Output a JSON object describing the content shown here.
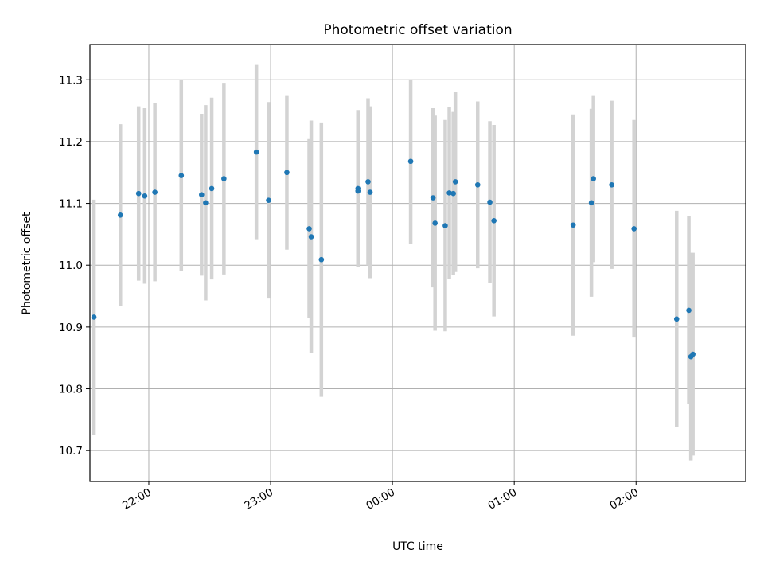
{
  "chart_data": {
    "type": "scatter",
    "title": "Photometric offset variation",
    "xlabel": "UTC time",
    "ylabel": "Photometric offset",
    "x_unit": "UTC time (HH:MM)",
    "x_range": [
      "21:31",
      "02:54"
    ],
    "ylim": [
      10.65,
      11.357
    ],
    "grid": true,
    "x_ticks": [
      "22:00",
      "23:00",
      "00:00",
      "01:00",
      "02:00"
    ],
    "y_ticks": [
      "10.7",
      "10.8",
      "10.9",
      "11.0",
      "11.1",
      "11.2",
      "11.3"
    ],
    "series": [
      {
        "marker_color": "#1f77b4",
        "errorbar_color": "#d3d3d3",
        "points": [
          {
            "x": "21:33",
            "y": 10.916,
            "yerr": 0.19
          },
          {
            "x": "21:46",
            "y": 11.081,
            "yerr": 0.147
          },
          {
            "x": "21:55",
            "y": 11.116,
            "yerr": 0.141
          },
          {
            "x": "21:58",
            "y": 11.112,
            "yerr": 0.142
          },
          {
            "x": "22:03",
            "y": 11.118,
            "yerr": 0.144
          },
          {
            "x": "22:16",
            "y": 11.145,
            "yerr": 0.155
          },
          {
            "x": "22:26",
            "y": 11.114,
            "yerr": 0.131
          },
          {
            "x": "22:28",
            "y": 11.101,
            "yerr": 0.158
          },
          {
            "x": "22:31",
            "y": 11.124,
            "yerr": 0.147
          },
          {
            "x": "22:37",
            "y": 11.14,
            "yerr": 0.155
          },
          {
            "x": "22:53",
            "y": 11.183,
            "yerr": 0.141
          },
          {
            "x": "22:59",
            "y": 11.105,
            "yerr": 0.159
          },
          {
            "x": "23:08",
            "y": 11.15,
            "yerr": 0.125
          },
          {
            "x": "23:19",
            "y": 11.059,
            "yerr": 0.145
          },
          {
            "x": "23:20",
            "y": 11.046,
            "yerr": 0.188
          },
          {
            "x": "23:25",
            "y": 11.009,
            "yerr": 0.222
          },
          {
            "x": "23:43",
            "y": 11.124,
            "yerr": 0.127
          },
          {
            "x": "23:43",
            "y": 11.12,
            "yerr": 0.12
          },
          {
            "x": "23:48",
            "y": 11.135,
            "yerr": 0.135
          },
          {
            "x": "23:49",
            "y": 11.118,
            "yerr": 0.139
          },
          {
            "x": "00:09",
            "y": 11.168,
            "yerr": 0.133
          },
          {
            "x": "00:20",
            "y": 11.109,
            "yerr": 0.145
          },
          {
            "x": "00:21",
            "y": 11.068,
            "yerr": 0.174
          },
          {
            "x": "00:26",
            "y": 11.064,
            "yerr": 0.171
          },
          {
            "x": "00:28",
            "y": 11.117,
            "yerr": 0.139
          },
          {
            "x": "00:30",
            "y": 11.116,
            "yerr": 0.132
          },
          {
            "x": "00:31",
            "y": 11.135,
            "yerr": 0.146
          },
          {
            "x": "00:42",
            "y": 11.13,
            "yerr": 0.135
          },
          {
            "x": "00:48",
            "y": 11.102,
            "yerr": 0.131
          },
          {
            "x": "00:50",
            "y": 11.072,
            "yerr": 0.155
          },
          {
            "x": "01:29",
            "y": 11.065,
            "yerr": 0.179
          },
          {
            "x": "01:38",
            "y": 11.101,
            "yerr": 0.152
          },
          {
            "x": "01:39",
            "y": 11.14,
            "yerr": 0.135
          },
          {
            "x": "01:48",
            "y": 11.13,
            "yerr": 0.136
          },
          {
            "x": "01:59",
            "y": 11.059,
            "yerr": 0.176
          },
          {
            "x": "02:20",
            "y": 10.913,
            "yerr": 0.175
          },
          {
            "x": "02:26",
            "y": 10.927,
            "yerr": 0.152
          },
          {
            "x": "02:27",
            "y": 10.852,
            "yerr": 0.168
          },
          {
            "x": "02:28",
            "y": 10.856,
            "yerr": 0.164
          }
        ]
      }
    ]
  }
}
